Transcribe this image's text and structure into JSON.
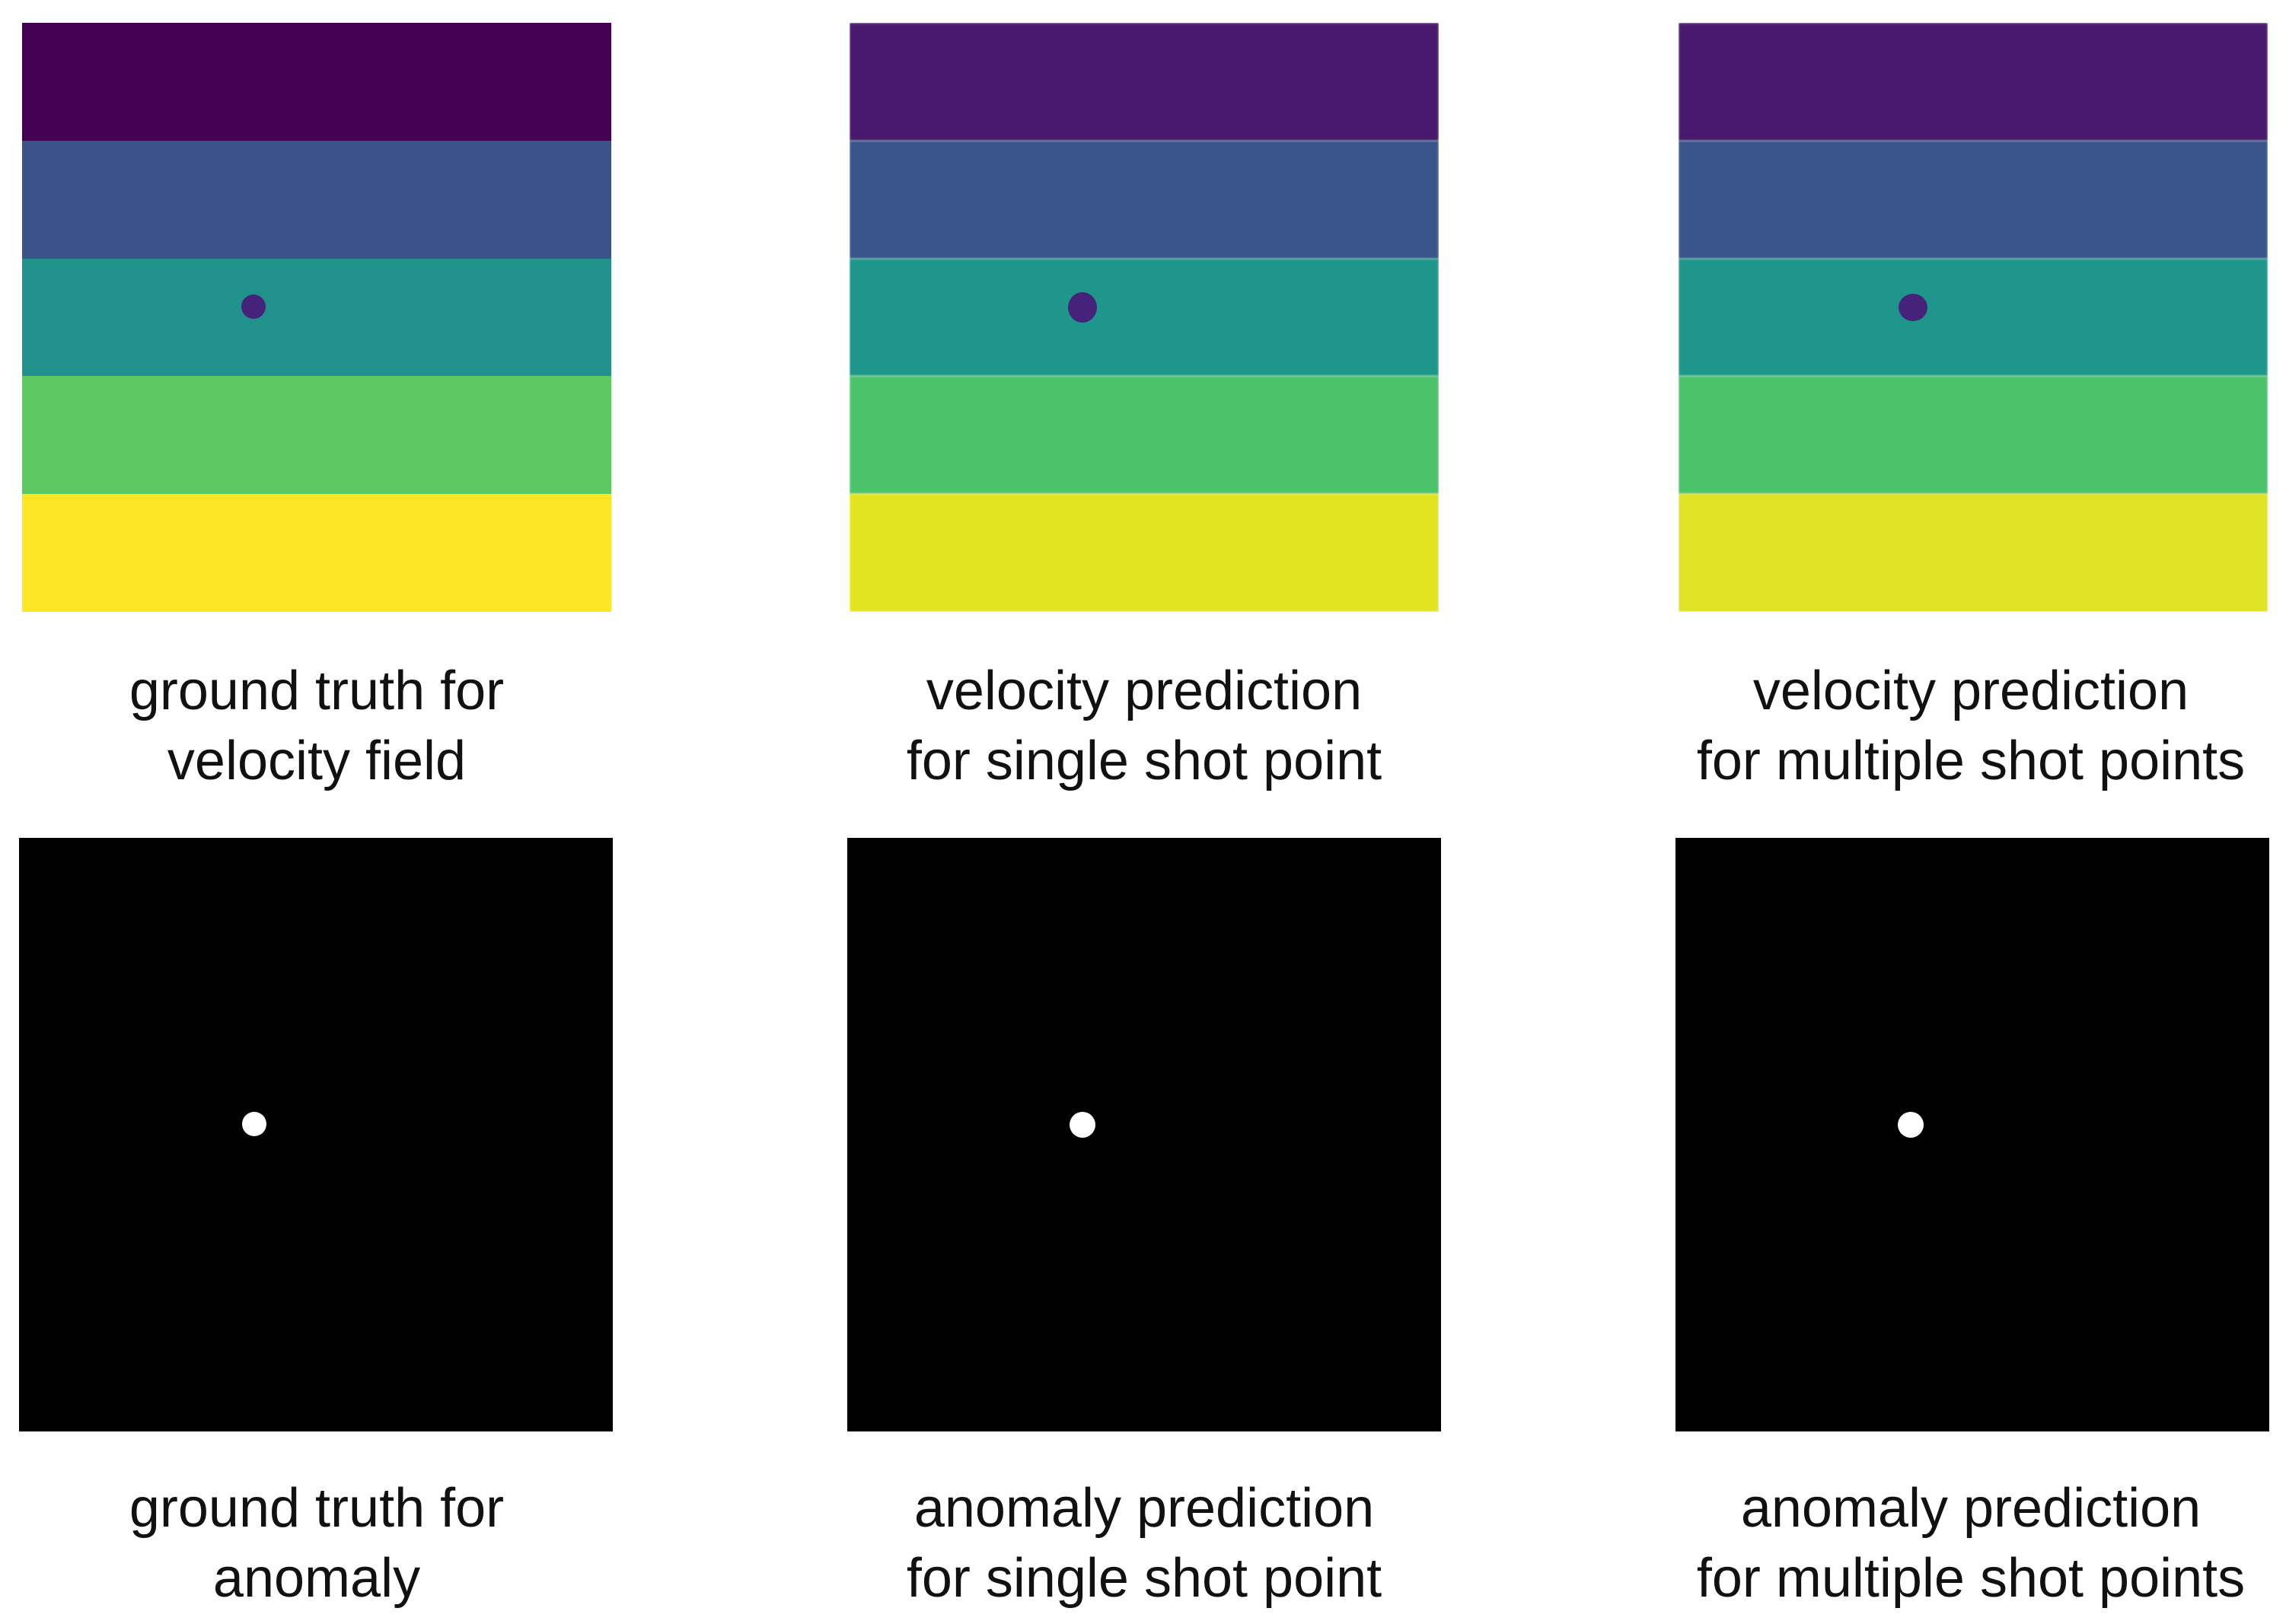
{
  "colors": {
    "viridis_1": "#440154",
    "viridis_2": "#3b528b",
    "viridis_3": "#21918c",
    "viridis_4": "#5ec962",
    "viridis_5": "#fde725",
    "pred_1": "#471a6e",
    "pred_2": "#39558c",
    "pred_3": "#1f968b",
    "pred_4": "#4cc26b",
    "pred_5": "#e3e420",
    "anomaly_inclusion": "#46237a",
    "anomaly_white": "#ffffff",
    "anomaly_background": "#000000"
  },
  "panels": [
    {
      "id": "velocity-ground-truth",
      "caption_line1": "ground truth for",
      "caption_line2": "velocity field"
    },
    {
      "id": "velocity-single-shot",
      "caption_line1": "velocity prediction",
      "caption_line2": "for single shot point"
    },
    {
      "id": "velocity-multiple-shot",
      "caption_line1": "velocity prediction",
      "caption_line2": "for multiple shot points"
    },
    {
      "id": "anomaly-ground-truth",
      "caption_line1": "ground truth for",
      "caption_line2": "anomaly"
    },
    {
      "id": "anomaly-single-shot",
      "caption_line1": "anomaly prediction",
      "caption_line2": "for single shot point"
    },
    {
      "id": "anomaly-multiple-shot",
      "caption_line1": "anomaly prediction",
      "caption_line2": "for multiple shot points"
    }
  ]
}
